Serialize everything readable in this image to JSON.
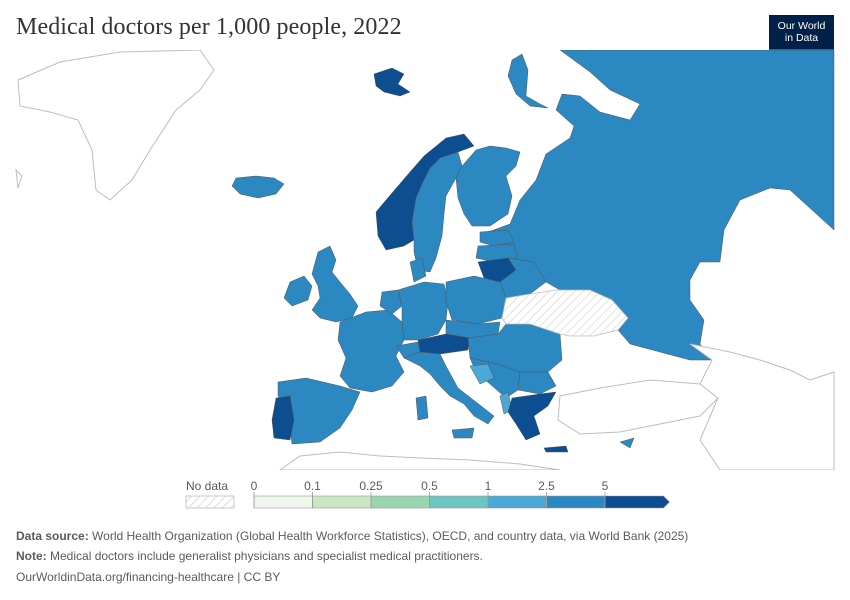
{
  "title": "Medical doctors per 1,000 people, 2022",
  "logo": {
    "line1": "Our World",
    "line2": "in Data"
  },
  "legend": {
    "no_data_label": "No data",
    "bins": [
      {
        "label": "0",
        "color": "#eef7ec"
      },
      {
        "label": "0.1",
        "color": "#c9e7c2"
      },
      {
        "label": "0.25",
        "color": "#9ad5b0"
      },
      {
        "label": "0.5",
        "color": "#6cc5c0"
      },
      {
        "label": "1",
        "color": "#4aa9d6"
      },
      {
        "label": "2.5",
        "color": "#2b88c0"
      },
      {
        "label": "5",
        "color": "#0c4e8f"
      }
    ]
  },
  "colors": {
    "high": "#0c4e8f",
    "mid": "#2b88c0",
    "low": "#4aa9d6",
    "no_data": "#ffffff",
    "border": "#555555",
    "outline": "#bcbcbc"
  },
  "map_regions": [
    {
      "name": "Russia",
      "bin": "2.5-5"
    },
    {
      "name": "Norway",
      "bin": ">5"
    },
    {
      "name": "Sweden",
      "bin": "2.5-5"
    },
    {
      "name": "Finland",
      "bin": "2.5-5"
    },
    {
      "name": "Iceland",
      "bin": "2.5-5"
    },
    {
      "name": "Svalbard",
      "bin": ">5"
    },
    {
      "name": "United Kingdom",
      "bin": "2.5-5"
    },
    {
      "name": "Ireland",
      "bin": "2.5-5"
    },
    {
      "name": "France",
      "bin": "2.5-5"
    },
    {
      "name": "Spain",
      "bin": "2.5-5"
    },
    {
      "name": "Portugal",
      "bin": ">5"
    },
    {
      "name": "Germany",
      "bin": "2.5-5"
    },
    {
      "name": "Poland",
      "bin": "2.5-5"
    },
    {
      "name": "Lithuania",
      "bin": ">5"
    },
    {
      "name": "Austria",
      "bin": ">5"
    },
    {
      "name": "Italy",
      "bin": "2.5-5"
    },
    {
      "name": "Greece",
      "bin": ">5"
    },
    {
      "name": "Bosnia and Herzegovina",
      "bin": "1-2.5"
    },
    {
      "name": "Albania",
      "bin": "1-2.5"
    },
    {
      "name": "Ukraine",
      "bin": "no data"
    },
    {
      "name": "Turkey",
      "bin": "no data"
    }
  ],
  "footer": {
    "source_label": "Data source:",
    "source_text": "World Health Organization (Global Health Workforce Statistics), OECD, and country data, via World Bank (2025)",
    "note_label": "Note:",
    "note_text": "Medical doctors include generalist physicians and specialist medical practitioners.",
    "url_text": "OurWorldinData.org/financing-healthcare | CC BY"
  }
}
